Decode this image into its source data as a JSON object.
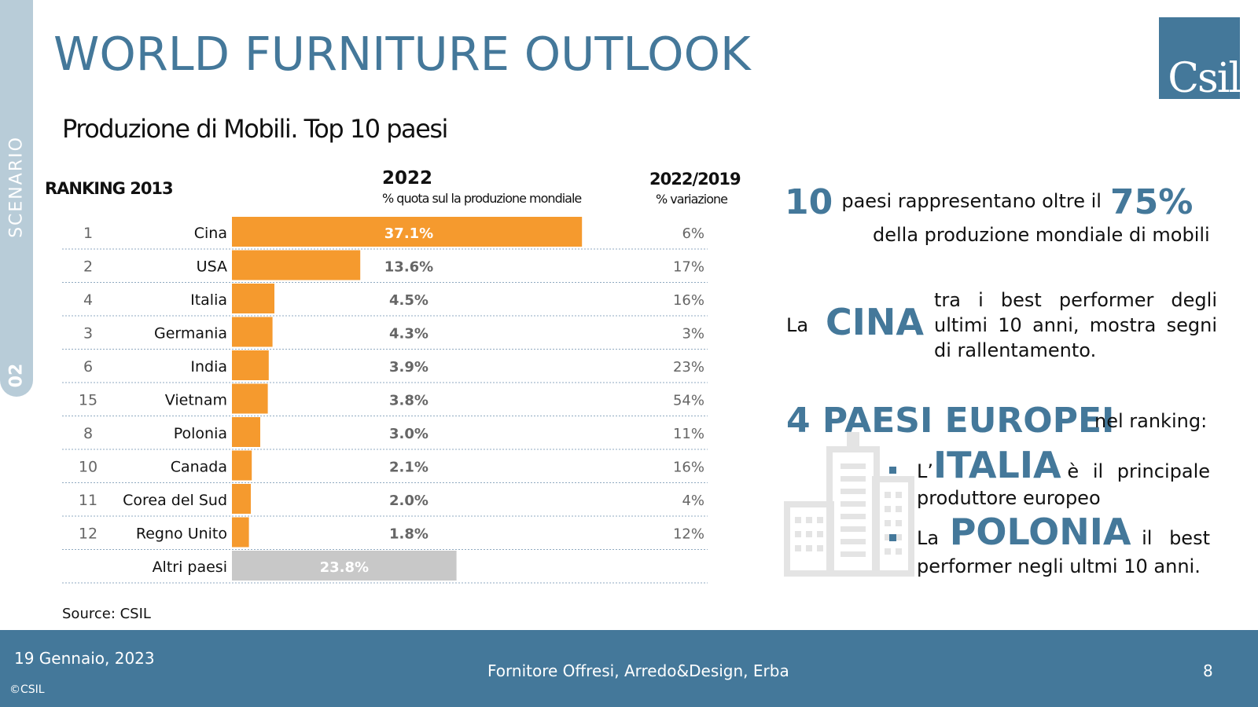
{
  "sidebar": {
    "section": "SCENARIO",
    "number": "02"
  },
  "header": {
    "title": "WORLD FURNITURE OUTLOOK",
    "logo": "Csil"
  },
  "subtitle": "Produzione di Mobili. Top 10 paesi",
  "table_headers": {
    "ranking": "RANKING 2013",
    "year": "2022",
    "year_sub": "% quota sul la produzione mondiale",
    "variation": "2022/2019",
    "variation_sub": "% variazione"
  },
  "chart_data": {
    "type": "bar",
    "title": "Produzione di Mobili. Top 10 paesi",
    "xlabel": "% quota sul la produzione mondiale",
    "ylabel": "",
    "xlim": [
      0,
      40
    ],
    "rows": [
      {
        "rank": "1",
        "country": "Cina",
        "share": 37.1,
        "share_label": "37.1%",
        "variation": "6%",
        "color": "#f59a2e"
      },
      {
        "rank": "2",
        "country": "USA",
        "share": 13.6,
        "share_label": "13.6%",
        "variation": "17%",
        "color": "#f59a2e"
      },
      {
        "rank": "4",
        "country": "Italia",
        "share": 4.5,
        "share_label": "4.5%",
        "variation": "16%",
        "color": "#f59a2e"
      },
      {
        "rank": "3",
        "country": "Germania",
        "share": 4.3,
        "share_label": "4.3%",
        "variation": "3%",
        "color": "#f59a2e"
      },
      {
        "rank": "6",
        "country": "India",
        "share": 3.9,
        "share_label": "3.9%",
        "variation": "23%",
        "color": "#f59a2e"
      },
      {
        "rank": "15",
        "country": "Vietnam",
        "share": 3.8,
        "share_label": "3.8%",
        "variation": "54%",
        "color": "#f59a2e"
      },
      {
        "rank": "8",
        "country": "Polonia",
        "share": 3.0,
        "share_label": "3.0%",
        "variation": "11%",
        "color": "#f59a2e"
      },
      {
        "rank": "10",
        "country": "Canada",
        "share": 2.1,
        "share_label": "2.1%",
        "variation": "16%",
        "color": "#f59a2e"
      },
      {
        "rank": "11",
        "country": "Corea del Sud",
        "share": 2.0,
        "share_label": "2.0%",
        "variation": "4%",
        "color": "#f59a2e"
      },
      {
        "rank": "12",
        "country": "Regno Unito",
        "share": 1.8,
        "share_label": "1.8%",
        "variation": "12%",
        "color": "#f59a2e"
      },
      {
        "rank": "",
        "country": "Altri paesi",
        "share": 23.8,
        "share_label": "23.8%",
        "variation": "",
        "color": "#c8c8c8"
      }
    ]
  },
  "source": "Source: CSIL",
  "callouts": {
    "c1_num": "10",
    "c1_text": "paesi rappresentano oltre il",
    "c1_pct": "75%",
    "c1_line2": "della produzione mondiale di mobili",
    "c2_la": "La",
    "c2_big": "CINA",
    "c2_l1": "tra i best performer degli",
    "c2_l2": "ultimi 10 anni, mostra segni",
    "c2_l3": "di rallentamento.",
    "c3_big": "4 PAESI EUROPEI",
    "c3_text": "nel ranking:",
    "b1_pre": "L’",
    "b1_big": "ITALIA",
    "b1_mid": "è il principale",
    "b1_l2": "produttore europeo",
    "b2_pre": "La",
    "b2_big": "POLONIA",
    "b2_mid": "il best",
    "b2_l2": "performer negli ultmi 10 anni."
  },
  "footer": {
    "date": "19 Gennaio, 2023",
    "copyright": "©CSIL",
    "center": "Fornitore Offresi, Arredo&Design, Erba",
    "page": "8"
  },
  "colors": {
    "accent": "#44789a",
    "bar": "#f59a2e",
    "others": "#c8c8c8",
    "sidebar": "#b8ccd8"
  }
}
